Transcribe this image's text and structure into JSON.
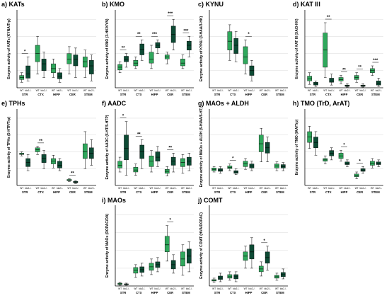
{
  "colors": {
    "wt": "#2fa85c",
    "ko": "#0d4a34",
    "grid": "#d8d8d8",
    "axis": "#000000"
  },
  "chart_data": [
    {
      "type": "box",
      "id": "a",
      "title": "a) KATs",
      "ylabel": "Enzyme activity of KATs (KYNA/Trp)",
      "regions": [
        "STR",
        "CTX",
        "HIPP",
        "CER",
        "STEM"
      ],
      "genotypes": [
        "WT",
        "Ido2-/-"
      ],
      "boxes": [
        {
          "min": 0.08,
          "q1": 0.12,
          "median": 0.15,
          "q3": 0.18,
          "max": 0.22
        },
        {
          "min": 0.1,
          "q1": 0.14,
          "median": 0.2,
          "q3": 0.32,
          "max": 0.45
        },
        {
          "min": 0.2,
          "q1": 0.38,
          "median": 0.5,
          "q3": 0.62,
          "max": 0.75
        },
        {
          "min": 0.15,
          "q1": 0.25,
          "median": 0.35,
          "q3": 0.42,
          "max": 0.52
        },
        {
          "min": 0.15,
          "q1": 0.22,
          "median": 0.28,
          "q3": 0.35,
          "max": 0.42
        },
        {
          "min": 0.08,
          "q1": 0.13,
          "median": 0.17,
          "q3": 0.22,
          "max": 0.28
        },
        {
          "min": 0.2,
          "q1": 0.35,
          "median": 0.42,
          "q3": 0.5,
          "max": 0.6
        },
        {
          "min": 0.15,
          "q1": 0.32,
          "median": 0.42,
          "q3": 0.48,
          "max": 0.58
        },
        {
          "min": 0.15,
          "q1": 0.3,
          "median": 0.38,
          "q3": 0.45,
          "max": 0.55
        },
        {
          "min": 0.1,
          "q1": 0.2,
          "median": 0.32,
          "q3": 0.4,
          "max": 0.48
        }
      ],
      "sig": [
        {
          "from": 0,
          "to": 1,
          "label": "*"
        }
      ]
    },
    {
      "type": "box",
      "id": "b",
      "title": "b) KMO",
      "ylabel": "Enzyme activity of KMO (3-HK/KYN)",
      "regions": [
        "STR",
        "CTX",
        "HIPP",
        "CER",
        "STEM"
      ],
      "genotypes": [
        "WT",
        "Ido2-/-"
      ],
      "boxes": [
        {
          "min": 0.22,
          "q1": 0.26,
          "median": 0.3,
          "q3": 0.34,
          "max": 0.38
        },
        {
          "min": 0.3,
          "q1": 0.38,
          "median": 0.42,
          "q3": 0.46,
          "max": 0.5
        },
        {
          "min": 0.28,
          "q1": 0.32,
          "median": 0.36,
          "q3": 0.4,
          "max": 0.45
        },
        {
          "min": 0.4,
          "q1": 0.48,
          "median": 0.56,
          "q3": 0.64,
          "max": 0.7
        },
        {
          "min": 0.28,
          "q1": 0.36,
          "median": 0.42,
          "q3": 0.52,
          "max": 0.62
        },
        {
          "min": 0.5,
          "q1": 0.58,
          "median": 0.62,
          "q3": 0.66,
          "max": 0.7
        },
        {
          "min": 0.35,
          "q1": 0.42,
          "median": 0.45,
          "q3": 0.48,
          "max": 0.52
        },
        {
          "min": 0.55,
          "q1": 0.66,
          "median": 0.78,
          "q3": 0.9,
          "max": 1.0
        },
        {
          "min": 0.28,
          "q1": 0.32,
          "median": 0.36,
          "q3": 0.42,
          "max": 0.48
        },
        {
          "min": 0.45,
          "q1": 0.55,
          "median": 0.62,
          "q3": 0.68,
          "max": 0.75
        }
      ],
      "sig": [
        {
          "from": 0,
          "to": 1,
          "label": "**"
        },
        {
          "from": 2,
          "to": 3,
          "label": "**"
        },
        {
          "from": 4,
          "to": 5,
          "label": "***"
        },
        {
          "from": 6,
          "to": 7,
          "label": "***"
        },
        {
          "from": 8,
          "to": 9,
          "label": "***"
        }
      ]
    },
    {
      "type": "box",
      "id": "c",
      "title": "c) KYNU",
      "ylabel": "Enzyme activity of KYNU (3-HAA/3-HK)",
      "regions": [
        "STR",
        "CTX",
        "HIPP",
        "CER",
        "STEM"
      ],
      "genotypes": [
        "WT",
        "Ido2-/-"
      ],
      "boxes": [
        null,
        null,
        {
          "min": 0.4,
          "q1": 0.55,
          "median": 0.68,
          "q3": 0.82,
          "max": 0.92
        },
        {
          "min": 0.38,
          "q1": 0.5,
          "median": 0.62,
          "q3": 0.72,
          "max": 0.82
        },
        {
          "min": 0.2,
          "q1": 0.35,
          "median": 0.45,
          "q3": 0.6,
          "max": 0.7
        },
        {
          "min": 0.1,
          "q1": 0.18,
          "median": 0.25,
          "q3": 0.32,
          "max": 0.4
        },
        null,
        null,
        null,
        null
      ],
      "sig": [
        {
          "from": 4,
          "to": 5,
          "label": "*"
        }
      ]
    },
    {
      "type": "box",
      "id": "d",
      "title": "d) KAT III",
      "ylabel": "Enzyme activity of KAT III (XA/3-HK)",
      "regions": [
        "STR",
        "CTX",
        "HIPP",
        "CER",
        "STEM"
      ],
      "genotypes": [
        "WT",
        "Ido2-/-"
      ],
      "boxes": [
        {
          "min": 0.05,
          "q1": 0.1,
          "median": 0.13,
          "q3": 0.17,
          "max": 0.22
        },
        {
          "min": 0.02,
          "q1": 0.04,
          "median": 0.06,
          "q3": 0.08,
          "max": 0.1
        },
        {
          "min": 0.15,
          "q1": 0.3,
          "median": 0.55,
          "q3": 0.8,
          "max": 0.95
        },
        {
          "min": 0.04,
          "q1": 0.08,
          "median": 0.1,
          "q3": 0.14,
          "max": 0.2
        },
        {
          "min": 0.06,
          "q1": 0.1,
          "median": 0.12,
          "q3": 0.15,
          "max": 0.18
        },
        {
          "min": 0.01,
          "q1": 0.02,
          "median": 0.03,
          "q3": 0.04,
          "max": 0.06
        },
        {
          "min": 0.08,
          "q1": 0.12,
          "median": 0.15,
          "q3": 0.18,
          "max": 0.22
        },
        {
          "min": 0.01,
          "q1": 0.02,
          "median": 0.03,
          "q3": 0.04,
          "max": 0.06
        },
        {
          "min": 0.18,
          "q1": 0.22,
          "median": 0.25,
          "q3": 0.28,
          "max": 0.32
        },
        {
          "min": 0.02,
          "q1": 0.04,
          "median": 0.07,
          "q3": 0.1,
          "max": 0.14
        }
      ],
      "sig": [
        {
          "from": 2,
          "to": 3,
          "label": "**"
        },
        {
          "from": 4,
          "to": 5,
          "label": "**"
        },
        {
          "from": 6,
          "to": 7,
          "label": "**"
        },
        {
          "from": 8,
          "to": 9,
          "label": "***"
        }
      ]
    },
    {
      "type": "box",
      "id": "e",
      "title": "e) TPHs",
      "ylabel": "Enzyme activity of TPHs (5-HTP/Trp)",
      "regions": [
        "STR",
        "CTX",
        "HIPP",
        "CER",
        "STEM"
      ],
      "genotypes": [
        "WT",
        "Ido2-/-"
      ],
      "boxes": [
        {
          "min": 0.44,
          "q1": 0.46,
          "median": 0.47,
          "q3": 0.48,
          "max": 0.5
        },
        {
          "min": 0.22,
          "q1": 0.28,
          "median": 0.34,
          "q3": 0.4,
          "max": 0.46
        },
        {
          "min": 0.46,
          "q1": 0.5,
          "median": 0.53,
          "q3": 0.56,
          "max": 0.58
        },
        {
          "min": 0.25,
          "q1": 0.34,
          "median": 0.4,
          "q3": 0.46,
          "max": 0.52
        },
        {
          "min": 0.26,
          "q1": 0.32,
          "median": 0.36,
          "q3": 0.4,
          "max": 0.45
        },
        {
          "min": 0.22,
          "q1": 0.26,
          "median": 0.3,
          "q3": 0.36,
          "max": 0.4
        },
        {
          "min": 0.06,
          "q1": 0.07,
          "median": 0.08,
          "q3": 0.09,
          "max": 0.1
        },
        {
          "min": 0.03,
          "q1": 0.04,
          "median": 0.05,
          "q3": 0.06,
          "max": 0.07
        },
        {
          "min": 0.25,
          "q1": 0.4,
          "median": 0.5,
          "q3": 0.62,
          "max": 0.8
        },
        {
          "min": 0.3,
          "q1": 0.4,
          "median": 0.48,
          "q3": 0.56,
          "max": 0.68
        }
      ],
      "sig": [
        {
          "from": 2,
          "to": 3,
          "label": "**"
        },
        {
          "from": 6,
          "to": 7,
          "label": "**"
        }
      ]
    },
    {
      "type": "box",
      "id": "f",
      "title": "f) AADC",
      "ylabel": "Enzyme activity of AADC (5-HT/5-HTP)",
      "regions": [
        "STR",
        "CTX",
        "HIPP",
        "CER",
        "STEM"
      ],
      "genotypes": [
        "WT",
        "Ido2-/-"
      ],
      "boxes": [
        {
          "min": 0.2,
          "q1": 0.26,
          "median": 0.3,
          "q3": 0.36,
          "max": 0.42
        },
        {
          "min": 0.15,
          "q1": 0.38,
          "median": 0.55,
          "q3": 0.75,
          "max": 0.95
        },
        {
          "min": 0.15,
          "q1": 0.2,
          "median": 0.23,
          "q3": 0.27,
          "max": 0.32
        },
        {
          "min": 0.25,
          "q1": 0.4,
          "median": 0.5,
          "q3": 0.6,
          "max": 0.68
        },
        {
          "min": 0.2,
          "q1": 0.28,
          "median": 0.36,
          "q3": 0.44,
          "max": 0.52
        },
        {
          "min": 0.28,
          "q1": 0.36,
          "median": 0.42,
          "q3": 0.5,
          "max": 0.58
        },
        {
          "min": 0.14,
          "q1": 0.18,
          "median": 0.21,
          "q3": 0.24,
          "max": 0.28
        },
        {
          "min": 0.2,
          "q1": 0.3,
          "median": 0.36,
          "q3": 0.42,
          "max": 0.48
        },
        {
          "min": 0.18,
          "q1": 0.28,
          "median": 0.34,
          "q3": 0.4,
          "max": 0.46
        },
        {
          "min": 0.22,
          "q1": 0.3,
          "median": 0.36,
          "q3": 0.42,
          "max": 0.48
        }
      ],
      "sig": [
        {
          "from": 0,
          "to": 1,
          "label": "*"
        },
        {
          "from": 2,
          "to": 3,
          "label": "**"
        },
        {
          "from": 6,
          "to": 7,
          "label": "**"
        }
      ]
    },
    {
      "type": "box",
      "id": "g",
      "title": "g) MAOs + ALDH",
      "ylabel": "Enzyme activity of MAOs + ALDH (5-HIAA/5-HT)",
      "regions": [
        "STR",
        "CTX",
        "HIPP",
        "CER",
        "STEM"
      ],
      "genotypes": [
        "WT",
        "Ido2-/-"
      ],
      "boxes": [
        {
          "min": 0.2,
          "q1": 0.22,
          "median": 0.24,
          "q3": 0.26,
          "max": 0.28
        },
        {
          "min": 0.18,
          "q1": 0.21,
          "median": 0.23,
          "q3": 0.25,
          "max": 0.28
        },
        {
          "min": 0.22,
          "q1": 0.25,
          "median": 0.27,
          "q3": 0.29,
          "max": 0.32
        },
        {
          "min": 0.16,
          "q1": 0.18,
          "median": 0.2,
          "q3": 0.22,
          "max": 0.25
        },
        {
          "min": 0.24,
          "q1": 0.28,
          "median": 0.32,
          "q3": 0.36,
          "max": 0.4
        },
        {
          "min": 0.22,
          "q1": 0.26,
          "median": 0.29,
          "q3": 0.32,
          "max": 0.36
        },
        {
          "min": 0.35,
          "q1": 0.5,
          "median": 0.62,
          "q3": 0.75,
          "max": 0.85
        },
        {
          "min": 0.35,
          "q1": 0.48,
          "median": 0.56,
          "q3": 0.64,
          "max": 0.72
        },
        {
          "min": 0.22,
          "q1": 0.26,
          "median": 0.29,
          "q3": 0.32,
          "max": 0.35
        },
        {
          "min": 0.22,
          "q1": 0.26,
          "median": 0.28,
          "q3": 0.31,
          "max": 0.34
        }
      ],
      "sig": [
        {
          "from": 2,
          "to": 3,
          "label": "*"
        }
      ]
    },
    {
      "type": "box",
      "id": "h",
      "title": "h) TMO (TrD, ArAT)",
      "ylabel": "Enzyme activity of TMO (IAA/Trp)",
      "regions": [
        "STR",
        "CTX",
        "HIPP",
        "CER",
        "STEM"
      ],
      "genotypes": [
        "WT",
        "Ido2-/-"
      ],
      "boxes": [
        {
          "min": 0.55,
          "q1": 0.64,
          "median": 0.72,
          "q3": 0.8,
          "max": 0.88
        },
        {
          "min": 0.45,
          "q1": 0.56,
          "median": 0.64,
          "q3": 0.72,
          "max": 0.8
        },
        {
          "min": 0.32,
          "q1": 0.36,
          "median": 0.38,
          "q3": 0.4,
          "max": 0.44
        },
        {
          "min": 0.38,
          "q1": 0.44,
          "median": 0.48,
          "q3": 0.52,
          "max": 0.56
        },
        {
          "min": 0.36,
          "q1": 0.4,
          "median": 0.44,
          "q3": 0.48,
          "max": 0.52
        },
        {
          "min": 0.28,
          "q1": 0.31,
          "median": 0.33,
          "q3": 0.35,
          "max": 0.38
        },
        {
          "min": 0.1,
          "q1": 0.13,
          "median": 0.15,
          "q3": 0.17,
          "max": 0.2
        },
        {
          "min": 0.18,
          "q1": 0.21,
          "median": 0.23,
          "q3": 0.25,
          "max": 0.28
        },
        {
          "min": 0.26,
          "q1": 0.3,
          "median": 0.33,
          "q3": 0.36,
          "max": 0.4
        },
        {
          "min": 0.28,
          "q1": 0.31,
          "median": 0.33,
          "q3": 0.35,
          "max": 0.38
        }
      ],
      "sig": [
        {
          "from": 4,
          "to": 5,
          "label": "*"
        },
        {
          "from": 6,
          "to": 7,
          "label": "*"
        }
      ]
    },
    {
      "type": "box",
      "id": "i",
      "title": "i) MAOs",
      "ylabel": "Enzyme activity of MAOs (DOPAC/DA)",
      "regions": [
        "STR",
        "CTX",
        "HIPP",
        "CER",
        "STEM"
      ],
      "genotypes": [
        "WT",
        "Ido2-/-"
      ],
      "boxes": [
        {
          "min": 0.01,
          "q1": 0.02,
          "median": 0.03,
          "q3": 0.04,
          "max": 0.05
        },
        {
          "min": 0.01,
          "q1": 0.02,
          "median": 0.02,
          "q3": 0.03,
          "max": 0.04
        },
        {
          "min": 0.12,
          "q1": 0.18,
          "median": 0.22,
          "q3": 0.26,
          "max": 0.3
        },
        {
          "min": 0.14,
          "q1": 0.19,
          "median": 0.23,
          "q3": 0.27,
          "max": 0.32
        },
        {
          "min": 0.16,
          "q1": 0.22,
          "median": 0.27,
          "q3": 0.32,
          "max": 0.38
        },
        {
          "min": 0.2,
          "q1": 0.26,
          "median": 0.3,
          "q3": 0.34,
          "max": 0.4
        },
        {
          "min": 0.35,
          "q1": 0.48,
          "median": 0.58,
          "q3": 0.7,
          "max": 0.85
        },
        {
          "min": 0.18,
          "q1": 0.24,
          "median": 0.3,
          "q3": 0.36,
          "max": 0.44
        },
        {
          "min": 0.15,
          "q1": 0.28,
          "median": 0.38,
          "q3": 0.48,
          "max": 0.58
        },
        {
          "min": 0.2,
          "q1": 0.32,
          "median": 0.42,
          "q3": 0.52,
          "max": 0.62
        }
      ],
      "sig": [
        {
          "from": 6,
          "to": 7,
          "label": "*"
        }
      ]
    },
    {
      "type": "box",
      "id": "j",
      "title": "j) COMT",
      "ylabel": "Enzyme activity of COMT (HVA/DOPAC)",
      "regions": [
        "STR",
        "CTX",
        "HIPP",
        "CER",
        "STEM"
      ],
      "genotypes": [
        "WT",
        "Ido2-/-"
      ],
      "boxes": [
        {
          "min": 0.05,
          "q1": 0.07,
          "median": 0.08,
          "q3": 0.09,
          "max": 0.11
        },
        {
          "min": 0.06,
          "q1": 0.09,
          "median": 0.11,
          "q3": 0.14,
          "max": 0.18
        },
        {
          "min": 0.08,
          "q1": 0.11,
          "median": 0.13,
          "q3": 0.16,
          "max": 0.2
        },
        {
          "min": 0.06,
          "q1": 0.1,
          "median": 0.13,
          "q3": 0.16,
          "max": 0.2
        },
        {
          "min": 0.25,
          "q1": 0.36,
          "median": 0.42,
          "q3": 0.48,
          "max": 0.56
        },
        {
          "min": 0.25,
          "q1": 0.38,
          "median": 0.48,
          "q3": 0.58,
          "max": 0.68
        },
        {
          "min": 0.14,
          "q1": 0.2,
          "median": 0.24,
          "q3": 0.28,
          "max": 0.34
        },
        {
          "min": 0.22,
          "q1": 0.32,
          "median": 0.4,
          "q3": 0.48,
          "max": 0.56
        },
        {
          "min": 0.08,
          "q1": 0.11,
          "median": 0.13,
          "q3": 0.15,
          "max": 0.18
        },
        {
          "min": 0.1,
          "q1": 0.13,
          "median": 0.16,
          "q3": 0.19,
          "max": 0.24
        }
      ],
      "sig": [
        {
          "from": 6,
          "to": 7,
          "label": "*"
        }
      ]
    }
  ]
}
